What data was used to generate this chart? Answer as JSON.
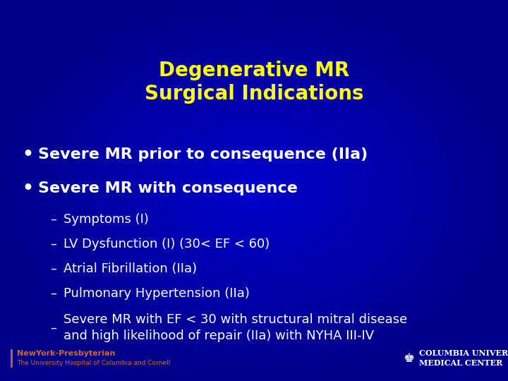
{
  "title_line1": "Degenerative MR",
  "title_line2": "Surgical Indications",
  "title_color": "#FFFF00",
  "background_color": "#00008B",
  "bg_center_color": "#0000CD",
  "bullet_color": "#FFFFFF",
  "bullet_items": [
    "Severe MR prior to consequence (IIa)",
    "Severe MR with consequence"
  ],
  "sub_items": [
    "Symptoms (I)",
    "LV Dysfunction (I) (30< EF < 60)",
    "Atrial Fibrillation (IIa)",
    "Pulmonary Hypertension (IIa)",
    "Severe MR with EF < 30 with structural mitral disease\nand high likelihood of repair (IIa) with NYHA III-IV"
  ],
  "footer_left_line1": "NewYork-Presbyterian",
  "footer_left_line2": "The University Hospital of Columbia and Cornell",
  "footer_right_line1": "COLUMBIA UNIVERSITY",
  "footer_right_line2": "MEDICAL CENTER",
  "footer_left_color": "#CC6633",
  "footer_right_color": "#FFFFFF",
  "sub_item_color": "#FFFFFF",
  "title_fontsize": 20,
  "bullet_fontsize": 16,
  "sub_fontsize": 13,
  "footer_fontsize_main": 8,
  "footer_fontsize_sub": 6.5
}
